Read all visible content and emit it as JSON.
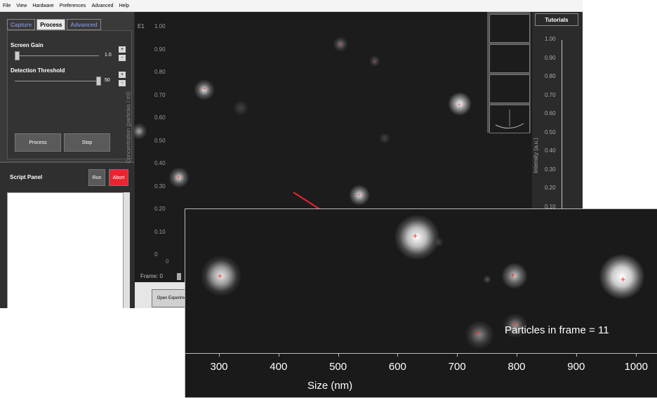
{
  "menu": [
    "File",
    "View",
    "Hardware",
    "Preferences",
    "Advanced",
    "Help"
  ],
  "tabs": [
    "Capture",
    "Process",
    "Advanced"
  ],
  "process": {
    "screen_gain_label": "Screen Gain",
    "screen_gain_value": "1.0",
    "detection_threshold_label": "Detection Threshold",
    "detection_threshold_value": "50",
    "plus": "+",
    "minus": "-",
    "process_button": "Process",
    "stop_button": "Stop"
  },
  "script_panel": {
    "title": "Script Panel",
    "run_button": "Run",
    "abort_button": "Abort"
  },
  "plot": {
    "corner_label": "E1",
    "ylabel": "Concentration (particles / ml)",
    "yticks": [
      "1.00",
      "0.90",
      "0.80",
      "0.70",
      "0.60",
      "0.50",
      "0.40",
      "0.30",
      "0.20",
      "0.10",
      "0"
    ],
    "x0": "0",
    "frame_label": "Frame: 0"
  },
  "right_panel": {
    "tutorials": "Tutorials",
    "ylabel": "Intensity (a.u.)",
    "yticks": [
      "1.00",
      "0.90",
      "0.80",
      "0.70",
      "0.60",
      "0.50",
      "0.40",
      "0.30",
      "0.20",
      "0.10"
    ]
  },
  "bottom": {
    "open_experiment": "Open Experiment"
  },
  "inset": {
    "particles_text": "Particles in frame = 11",
    "xlabel": "Size (nm)",
    "xticks": [
      "300",
      "400",
      "500",
      "600",
      "700",
      "800",
      "900",
      "1000"
    ]
  },
  "colors": {
    "abort": "#e8252f",
    "marker": "#ff2a2a",
    "arrow": "#e8252f",
    "tab_inactive_text": "#7a86c4"
  }
}
